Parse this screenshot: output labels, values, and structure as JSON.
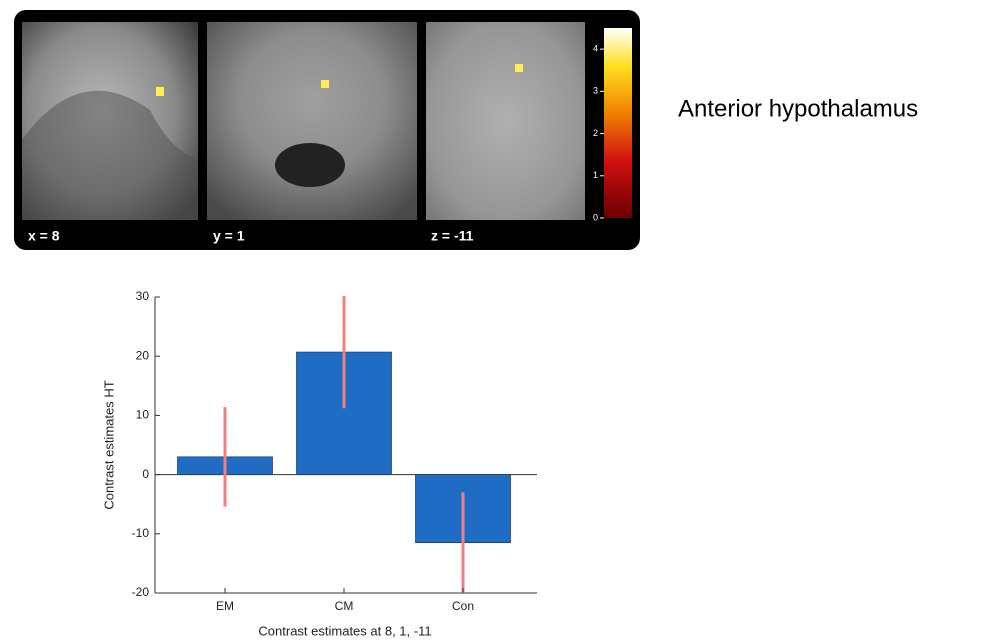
{
  "figure": {
    "slices": [
      {
        "label": "x = 8"
      },
      {
        "label": "y = 1"
      },
      {
        "label": "z = -11"
      }
    ],
    "colorbar": {
      "clim": [
        0,
        4.5
      ],
      "ticks": [
        0,
        1,
        2,
        3,
        4
      ]
    },
    "region_label": "Anterior hypothalamus"
  },
  "chart_data": {
    "type": "bar",
    "categories": [
      "EM",
      "CM",
      "Con"
    ],
    "values": [
      3,
      20.7,
      -11.5
    ],
    "errors": [
      8.4,
      9.5,
      8.5
    ],
    "color": "#1f6cc4",
    "error_color": "#f08080",
    "ylim": [
      -20,
      30
    ],
    "yticks": [
      -20,
      -10,
      0,
      10,
      20,
      30
    ],
    "xlabel": "Contrast estimates at 8, 1, -11",
    "ylabel": "Contrast estimates HT"
  }
}
